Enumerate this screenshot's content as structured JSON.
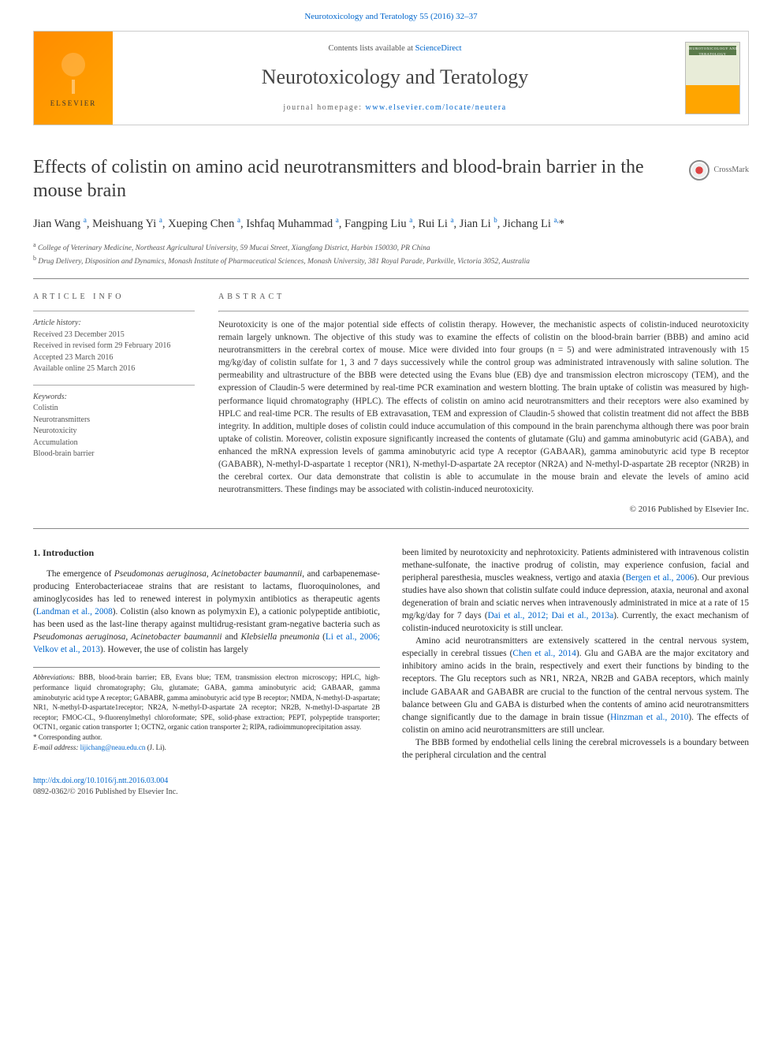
{
  "top_citation": {
    "prefix": "Neurotoxicology and Teratology 55 (2016) 32–37"
  },
  "header": {
    "contents_prefix": "Contents lists available at ",
    "contents_link": "ScienceDirect",
    "journal": "Neurotoxicology and Teratology",
    "homepage_prefix": "journal homepage: ",
    "homepage_link": "www.elsevier.com/locate/neutera",
    "elsevier": "ELSEVIER",
    "cover_title": "NEUROTOXICOLOGY AND TERATOLOGY"
  },
  "article": {
    "title": "Effects of colistin on amino acid neurotransmitters and blood-brain barrier in the mouse brain",
    "crossmark": "CrossMark",
    "authors_html": "Jian Wang <sup>a</sup>, Meishuang Yi <sup>a</sup>, Xueping Chen <sup>a</sup>, Ishfaq Muhammad <sup>a</sup>, Fangping Liu <sup>a</sup>, Rui Li <sup>a</sup>, Jian Li <sup>b</sup>, Jichang Li <sup>a,</sup><span class='star'>*</span>",
    "affiliations": [
      {
        "sup": "a",
        "text": "College of Veterinary Medicine, Northeast Agricultural University, 59 Mucai Street, Xiangfang District, Harbin 150030, PR China"
      },
      {
        "sup": "b",
        "text": "Drug Delivery, Disposition and Dynamics, Monash Institute of Pharmaceutical Sciences, Monash University, 381 Royal Parade, Parkville, Victoria 3052, Australia"
      }
    ]
  },
  "info": {
    "heading": "article info",
    "history_label": "Article history:",
    "history": [
      "Received 23 December 2015",
      "Received in revised form 29 February 2016",
      "Accepted 23 March 2016",
      "Available online 25 March 2016"
    ],
    "keywords_label": "Keywords:",
    "keywords": [
      "Colistin",
      "Neurotransmitters",
      "Neurotoxicity",
      "Accumulation",
      "Blood-brain barrier"
    ]
  },
  "abstract": {
    "heading": "abstract",
    "text": "Neurotoxicity is one of the major potential side effects of colistin therapy. However, the mechanistic aspects of colistin-induced neurotoxicity remain largely unknown. The objective of this study was to examine the effects of colistin on the blood-brain barrier (BBB) and amino acid neurotransmitters in the cerebral cortex of mouse. Mice were divided into four groups (n = 5) and were administrated intravenously with 15 mg/kg/day of colistin sulfate for 1, 3 and 7 days successively while the control group was administrated intravenously with saline solution. The permeability and ultrastructure of the BBB were detected using the Evans blue (EB) dye and transmission electron microscopy (TEM), and the expression of Claudin-5 were determined by real-time PCR examination and western blotting. The brain uptake of colistin was measured by high-performance liquid chromatography (HPLC). The effects of colistin on amino acid neurotransmitters and their receptors were also examined by HPLC and real-time PCR. The results of EB extravasation, TEM and expression of Claudin-5 showed that colistin treatment did not affect the BBB integrity. In addition, multiple doses of colistin could induce accumulation of this compound in the brain parenchyma although there was poor brain uptake of colistin. Moreover, colistin exposure significantly increased the contents of glutamate (Glu) and gamma aminobutyric acid (GABA), and enhanced the mRNA expression levels of gamma aminobutyric acid type A receptor (GABAAR), gamma aminobutyric acid type B receptor (GABABR), N-methyl-D-aspartate 1 receptor (NR1), N-methyl-D-aspartate 2A receptor (NR2A) and N-methyl-D-aspartate 2B receptor (NR2B) in the cerebral cortex. Our data demonstrate that colistin is able to accumulate in the mouse brain and elevate the levels of amino acid neurotransmitters. These findings may be associated with colistin-induced neurotoxicity.",
    "copyright": "© 2016 Published by Elsevier Inc."
  },
  "body": {
    "intro_heading": "1. Introduction",
    "p1_a": "The emergence of ",
    "p1_it1": "Pseudomonas aeruginosa",
    "p1_b": ", ",
    "p1_it2": "Acinetobacter baumannii",
    "p1_c": ", and carbapenemase-producing Enterobacteriaceae strains that are resistant to lactams, fluoroquinolones, and aminoglycosides has led to renewed interest in polymyxin antibiotics as therapeutic agents (",
    "p1_cite1": "Landman et al., 2008",
    "p1_d": "). Colistin (also known as polymyxin E), a cationic polypeptide antibiotic, has been used as the last-line therapy against multidrug-resistant gram-negative bacteria such as ",
    "p1_it3": "Pseudomonas aeruginosa",
    "p1_e": ", ",
    "p1_it4": "Acinetobacter baumannii",
    "p1_f": " and ",
    "p1_it5": "Klebsiella pneumonia",
    "p1_g": " (",
    "p1_cite2": "Li et al., 2006; Velkov et al., 2013",
    "p1_h": "). However, the use of colistin has largely",
    "p2_a": "been limited by neurotoxicity and nephrotoxicity. Patients administered with intravenous colistin methane-sulfonate, the inactive prodrug of colistin, may experience confusion, facial and peripheral paresthesia, muscles weakness, vertigo and ataxia (",
    "p2_cite1": "Bergen et al., 2006",
    "p2_b": "). Our previous studies have also shown that colistin sulfate could induce depression, ataxia, neuronal and axonal degeneration of brain and sciatic nerves when intravenously administrated in mice at a rate of 15 mg/kg/day for 7 days (",
    "p2_cite2": "Dai et al., 2012; Dai et al., 2013a",
    "p2_c": "). Currently, the exact mechanism of colistin-induced neurotoxicity is still unclear.",
    "p3_a": "Amino acid neurotransmitters are extensively scattered in the central nervous system, especially in cerebral tissues (",
    "p3_cite1": "Chen et al., 2014",
    "p3_b": "). Glu and GABA are the major excitatory and inhibitory amino acids in the brain, respectively and exert their functions by binding to the receptors. The Glu receptors such as NR1, NR2A, NR2B and GABA receptors, which mainly include GABAAR and GABABR are crucial to the function of the central nervous system. The balance between Glu and GABA is disturbed when the contents of amino acid neurotransmitters change significantly due to the damage in brain tissue (",
    "p3_cite2": "Hinzman et al., 2010",
    "p3_c": "). The effects of colistin on amino acid neurotransmitters are still unclear.",
    "p4": "The BBB formed by endothelial cells lining the cerebral microvessels is a boundary between the peripheral circulation and the central"
  },
  "footnotes": {
    "abbrev_label": "Abbreviations:",
    "abbrev_text": " BBB, blood-brain barrier; EB, Evans blue; TEM, transmission electron microscopy; HPLC, high-performance liquid chromatography; Glu, glutamate; GABA, gamma aminobutyric acid; GABAAR, gamma aminobutyric acid type A receptor; GABABR, gamma aminobutyric acid type B receptor; NMDA, N-methyl-D-aspartate; NR1, N-methyl-D-aspartate1receptor; NR2A, N-methyl-D-aspartate 2A receptor; NR2B, N-methyl-D-aspartate 2B receptor; FMOC-CL, 9-fluorenylmethyl chloroformate; SPE, solid-phase extraction; PEPT, polypeptide transporter; OCTN1, organic cation transporter 1; OCTN2, organic cation transporter 2; RIPA, radioimmunoprecipitation assay.",
    "corr_label": "* Corresponding author.",
    "email_label": "E-mail address: ",
    "email": "lijichang@neau.edu.cn",
    "email_suffix": " (J. Li)."
  },
  "footer": {
    "doi": "http://dx.doi.org/10.1016/j.ntt.2016.03.004",
    "issn": "0892-0362/© 2016 Published by Elsevier Inc."
  }
}
